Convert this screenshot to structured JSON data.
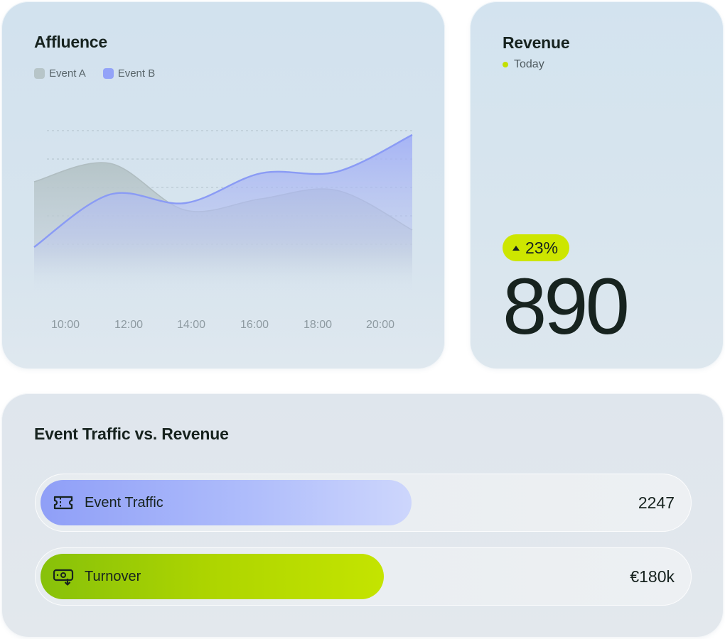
{
  "affluence": {
    "title": "Affluence",
    "legend": [
      {
        "label": "Event A",
        "color": "#b7c5c8"
      },
      {
        "label": "Event B",
        "color": "#93a3f8"
      }
    ]
  },
  "chart_data": {
    "type": "area",
    "title": "Affluence",
    "xlabel": "",
    "ylabel": "",
    "x": [
      "10:00",
      "12:00",
      "14:00",
      "16:00",
      "18:00",
      "20:00"
    ],
    "grid": true,
    "series": [
      {
        "name": "Event A",
        "color": "#b7c5c8",
        "values": [
          62,
          75,
          42,
          50,
          56,
          28
        ]
      },
      {
        "name": "Event B",
        "color": "#93a3f8",
        "values": [
          16,
          53,
          47,
          68,
          69,
          95
        ]
      }
    ],
    "ylim": [
      0,
      100
    ]
  },
  "revenue": {
    "title": "Revenue",
    "period": "Today",
    "change": "23%",
    "value": "890",
    "accent": "#cde600"
  },
  "traffic": {
    "title": "Event Traffic vs. Revenue",
    "bars": [
      {
        "label": "Event Traffic",
        "value": "2247",
        "icon": "ticket-icon",
        "fill_fraction": 0.575
      },
      {
        "label": "Turnover",
        "value": "€180k",
        "icon": "cash-payment-icon",
        "fill_fraction": 0.532
      }
    ]
  }
}
